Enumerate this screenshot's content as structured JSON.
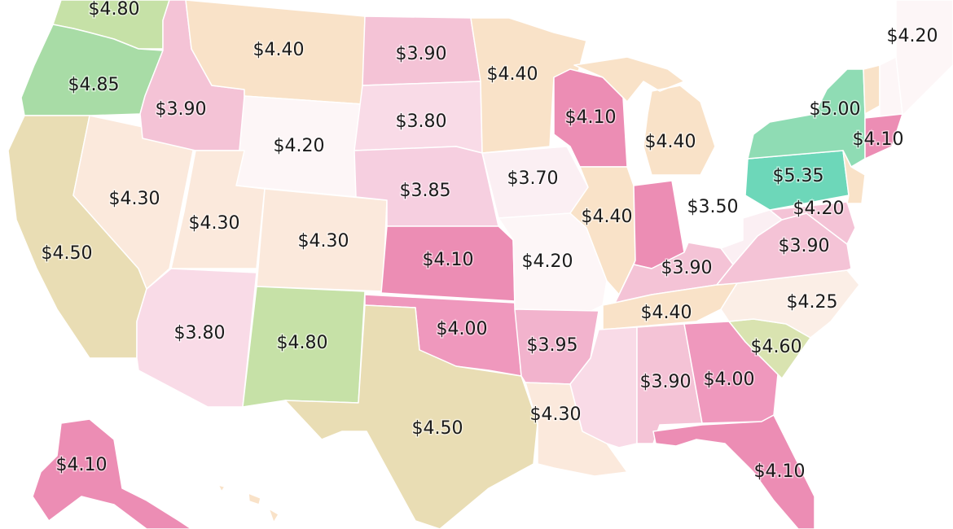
{
  "map": {
    "region": "United States",
    "color_scale": {
      "very_low": "#fbeff3",
      "low_pink": "#f4c3d6",
      "mid_pink": "#ef98bd",
      "hot_pink": "#ec8db4",
      "cream": "#f9e2c8",
      "peach": "#fbe9dc",
      "khaki": "#e9ddb4",
      "light_green": "#c6e1a7",
      "green": "#a8dca6",
      "mint": "#8fdcb4",
      "teal": "#6dd7b9"
    },
    "states": [
      {
        "id": "WA",
        "label": "$4.80",
        "color": "#c6e1a7"
      },
      {
        "id": "OR",
        "label": "$4.85",
        "color": "#a8dca6"
      },
      {
        "id": "CA",
        "label": "$4.50",
        "color": "#e9ddb4"
      },
      {
        "id": "NV",
        "label": "$4.30",
        "color": "#fbe9dc"
      },
      {
        "id": "ID",
        "label": "$3.90",
        "color": "#f4c3d6"
      },
      {
        "id": "MT",
        "label": "$4.40",
        "color": "#f9e2c8"
      },
      {
        "id": "WY",
        "label": "$4.20",
        "color": "#fdf6f7"
      },
      {
        "id": "UT",
        "label": "$4.30",
        "color": "#fbe9dc"
      },
      {
        "id": "CO",
        "label": "$4.30",
        "color": "#fbe9dc"
      },
      {
        "id": "AZ",
        "label": "$3.80",
        "color": "#f9dbe7"
      },
      {
        "id": "NM",
        "label": "$4.80",
        "color": "#c6e1a7"
      },
      {
        "id": "ND",
        "label": "$3.90",
        "color": "#f4c3d6"
      },
      {
        "id": "SD",
        "label": "$3.80",
        "color": "#f9dbe7"
      },
      {
        "id": "NE",
        "label": "$3.85",
        "color": "#f6cfe0"
      },
      {
        "id": "KS",
        "label": "$4.10",
        "color": "#ec8db4"
      },
      {
        "id": "OK",
        "label": "$4.00",
        "color": "#ef98bd"
      },
      {
        "id": "TX",
        "label": "$4.50",
        "color": "#e9ddb4"
      },
      {
        "id": "MN",
        "label": "$4.40",
        "color": "#f9e2c8"
      },
      {
        "id": "IA",
        "label": "$3.70",
        "color": "#fbeff3"
      },
      {
        "id": "MO",
        "label": "$4.20",
        "color": "#fdf6f7"
      },
      {
        "id": "AR",
        "label": "$3.95",
        "color": "#f2b3cd"
      },
      {
        "id": "LA",
        "label": "$4.30",
        "color": "#fbe9dc"
      },
      {
        "id": "WI",
        "label": "$4.10",
        "color": "#ec8db4"
      },
      {
        "id": "IL",
        "label": "$4.40",
        "color": "#f9e2c8"
      },
      {
        "id": "MI",
        "label": "$4.40",
        "color": "#f9e2c8"
      },
      {
        "id": "IN",
        "label": "",
        "color": "#ec8db4"
      },
      {
        "id": "OH",
        "label": "$3.50",
        "color": "#ffffff"
      },
      {
        "id": "KY",
        "label": "$3.90",
        "color": "#f4c3d6"
      },
      {
        "id": "TN",
        "label": "$4.40",
        "color": "#f9e2c8"
      },
      {
        "id": "MS",
        "label": "",
        "color": "#f9dbe7"
      },
      {
        "id": "AL",
        "label": "$3.90",
        "color": "#f4c3d6"
      },
      {
        "id": "GA",
        "label": "$4.00",
        "color": "#ef98bd"
      },
      {
        "id": "FL",
        "label": "$4.10",
        "color": "#ec8db4"
      },
      {
        "id": "SC",
        "label": "$4.60",
        "color": "#d9e3b0"
      },
      {
        "id": "NC",
        "label": "$4.25",
        "color": "#fbeee6"
      },
      {
        "id": "VA",
        "label": "$3.90",
        "color": "#f4c3d6"
      },
      {
        "id": "WV",
        "label": "",
        "color": "#fbeff3"
      },
      {
        "id": "MD",
        "label": "$4.20",
        "color": "#f4c3d6"
      },
      {
        "id": "PA",
        "label": "$5.35",
        "color": "#6dd7b9"
      },
      {
        "id": "NY",
        "label": "$5.00",
        "color": "#8fdcb4"
      },
      {
        "id": "NJ",
        "label": "",
        "color": "#f9e2c8"
      },
      {
        "id": "VT",
        "label": "",
        "color": "#f9e2c8"
      },
      {
        "id": "NH",
        "label": "",
        "color": "#fdf6f7"
      },
      {
        "id": "ME",
        "label": "$4.20",
        "color": "#fdf6f7"
      },
      {
        "id": "CT",
        "label": "$4.10",
        "color": "#ec8db4"
      },
      {
        "id": "AK",
        "label": "$4.10",
        "color": "#ec8db4"
      },
      {
        "id": "HI",
        "label": "",
        "color": "#f9e2c8"
      }
    ]
  }
}
